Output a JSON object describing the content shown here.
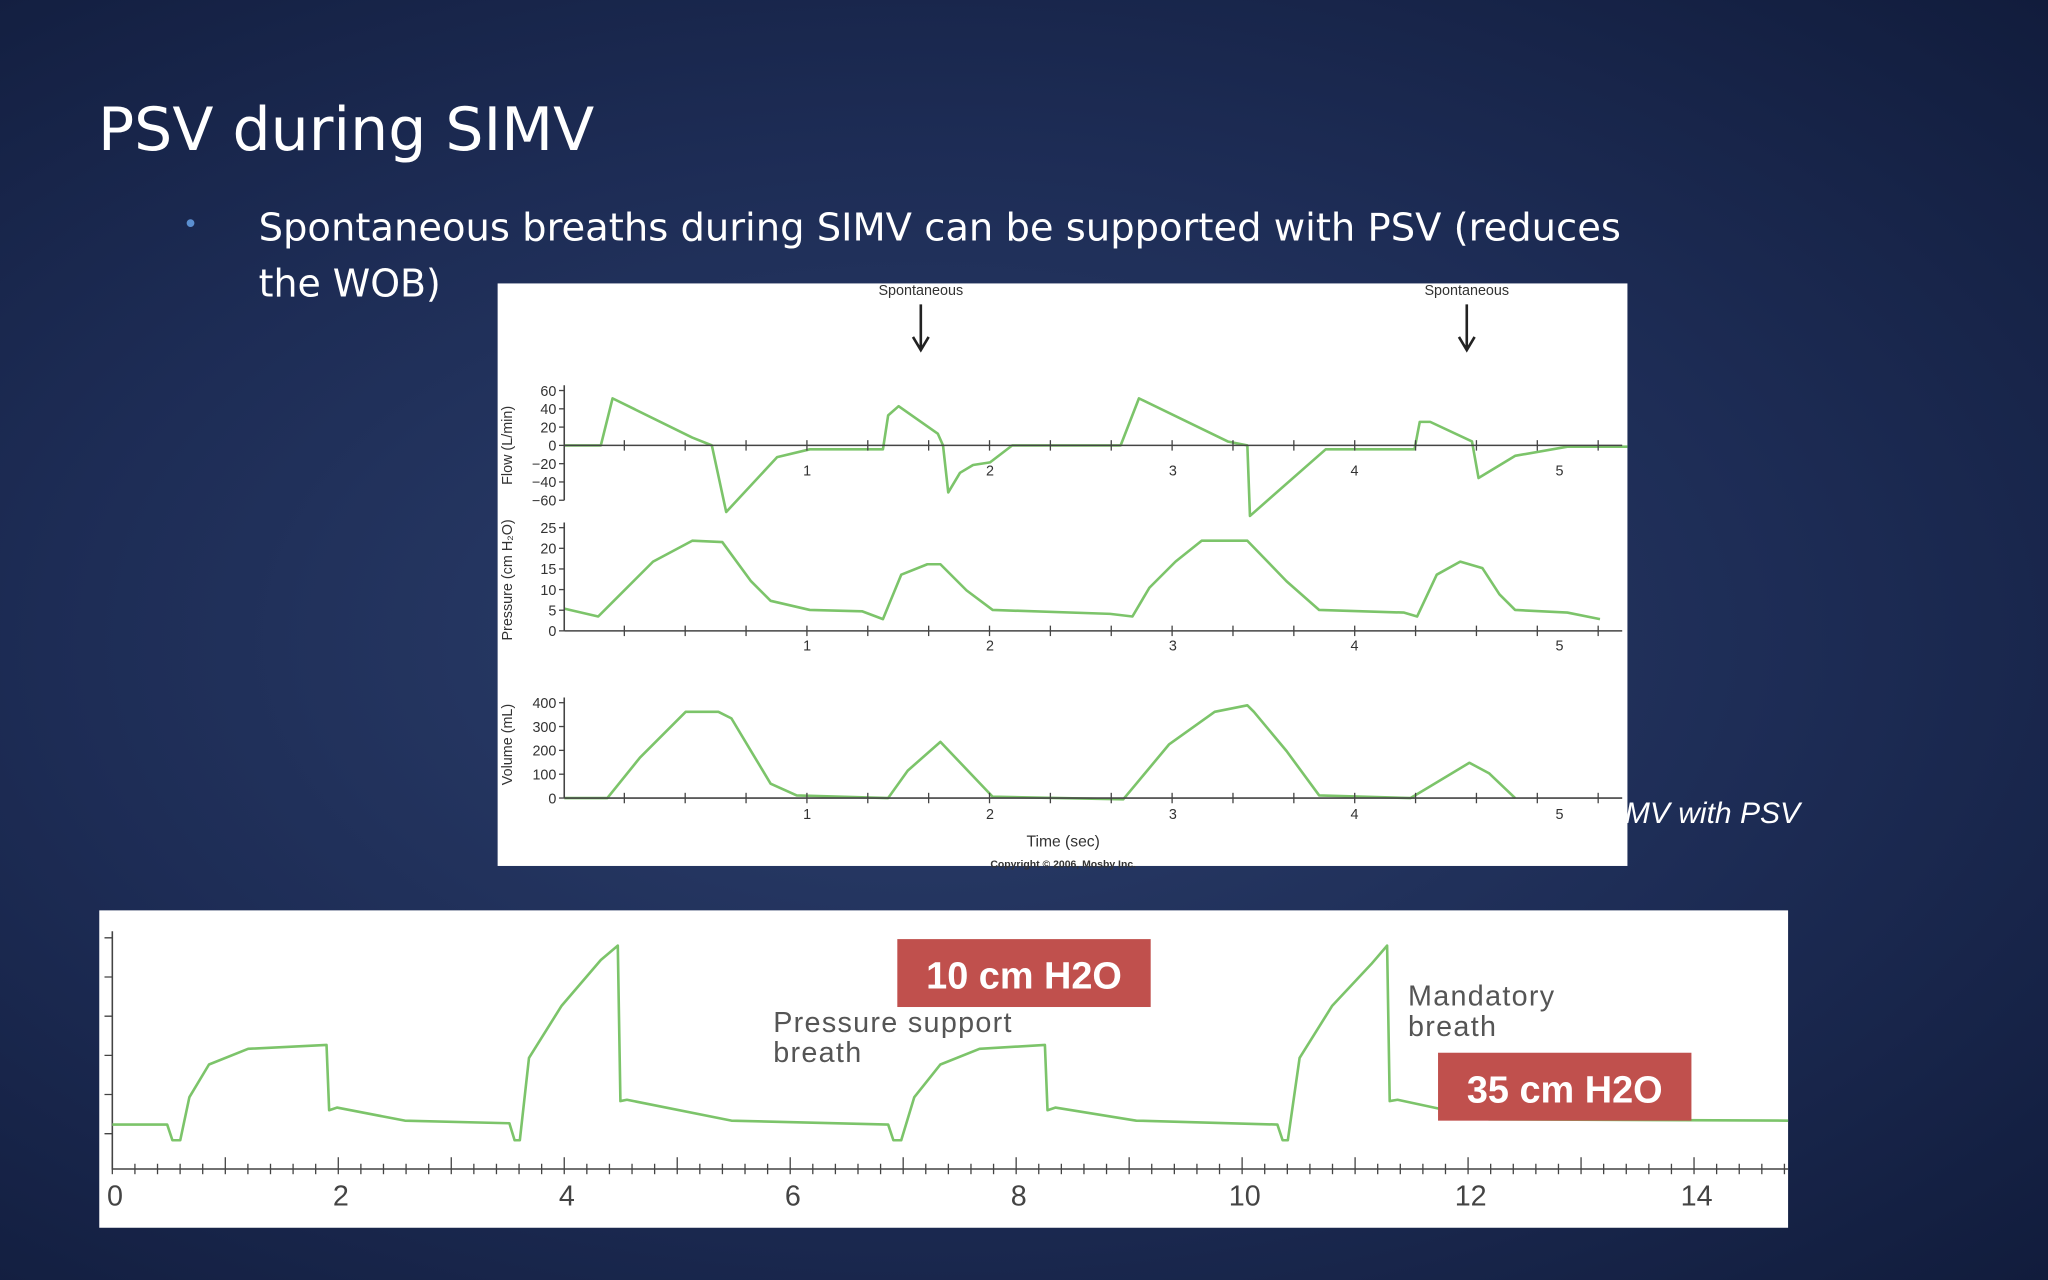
{
  "title": "PSV during SIMV",
  "bullet": [
    "Spontaneous breaths during SIMV can be supported with PSV (reduces",
    "the WOB)"
  ],
  "caption_partial": "MV with PSV",
  "figure1": {
    "annotations": [
      "Spontaneous",
      "Spontaneous"
    ],
    "panels": [
      {
        "ylabel": "Flow (L/min)",
        "yticks": [
          "60",
          "40",
          "20",
          "0",
          "−20",
          "−40",
          "−60"
        ]
      },
      {
        "ylabel": "Pressure (cm H₂O)",
        "yticks": [
          "25",
          "20",
          "15",
          "10",
          "5",
          "0"
        ]
      },
      {
        "ylabel": "Volume (mL)",
        "yticks": [
          "400",
          "300",
          "200",
          "100",
          "0"
        ]
      }
    ],
    "xticks": [
      "1",
      "2",
      "3",
      "4",
      "5"
    ],
    "xlabel": "Time (sec)",
    "copyright": "Copyright © 2006, Mosby Inc."
  },
  "figure2": {
    "label_10": "10 cm H2O",
    "label_35": "35 cm H2O",
    "pressure_support": [
      "Pressure support",
      "breath"
    ],
    "mandatory": [
      "Mandatory",
      "breath"
    ],
    "xticks": [
      "0",
      "2",
      "4",
      "6",
      "8",
      "10",
      "12",
      "14"
    ]
  }
}
